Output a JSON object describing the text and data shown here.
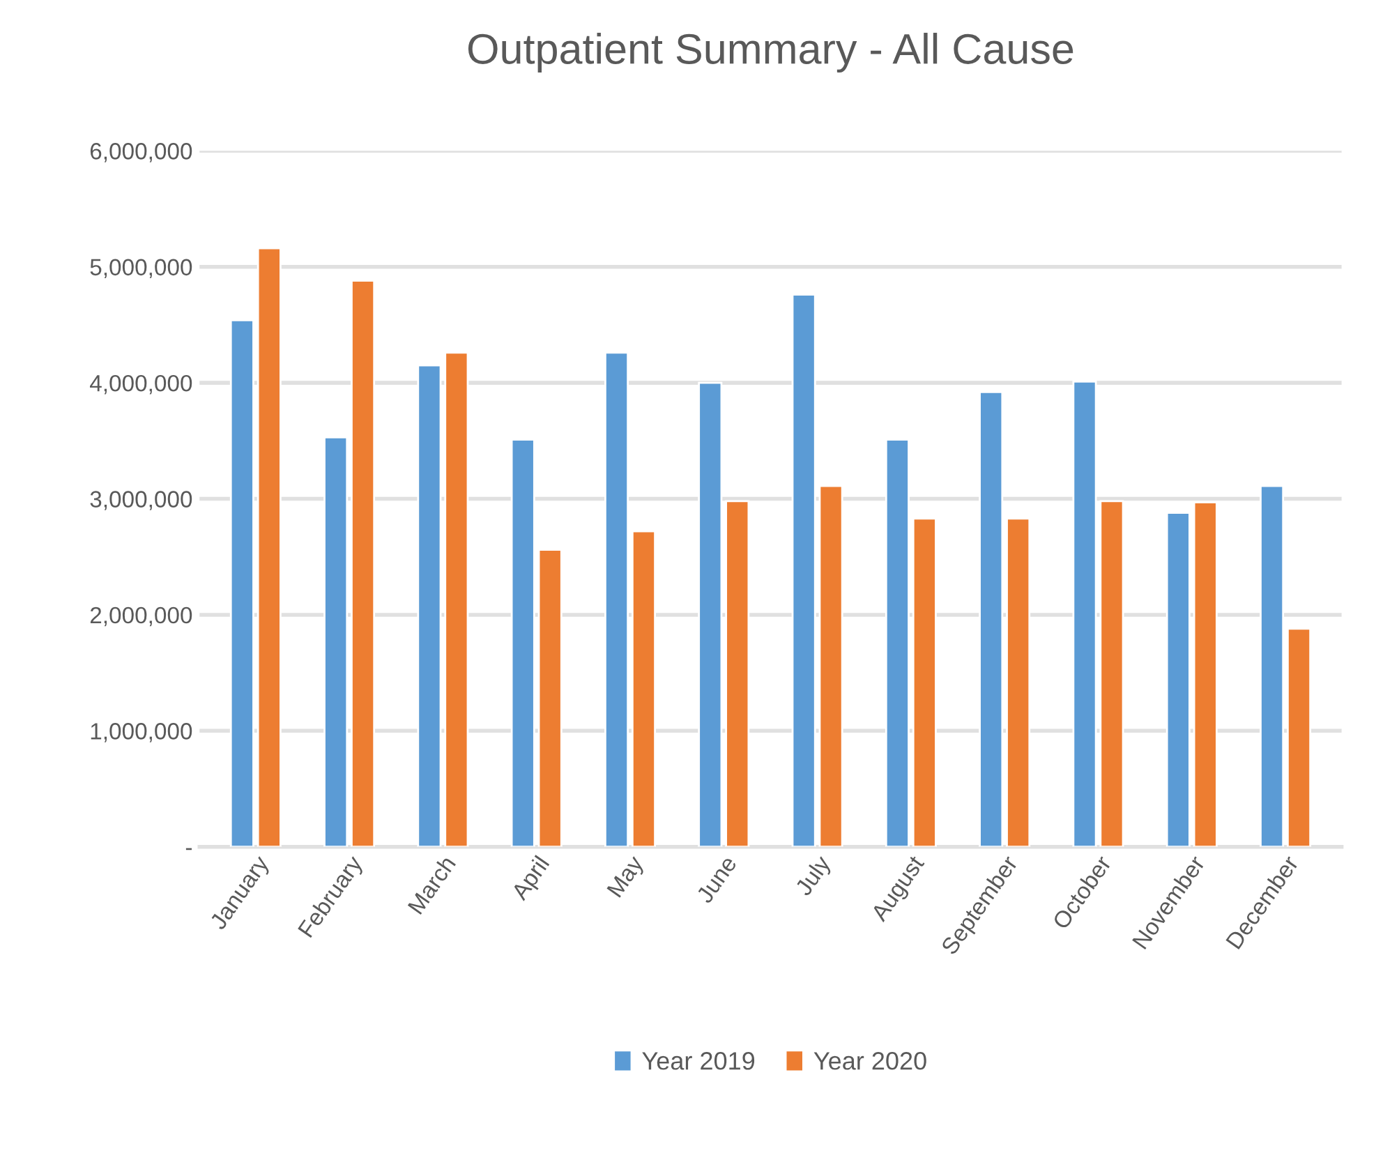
{
  "chart_data": {
    "type": "bar",
    "title": "Outpatient Summary - All Cause",
    "categories": [
      "January",
      "February",
      "March",
      "April",
      "May",
      "June",
      "July",
      "August",
      "September",
      "October",
      "November",
      "December"
    ],
    "series": [
      {
        "name": "Year 2019",
        "color": "#5b9bd5",
        "values": [
          4540000,
          3530000,
          4150000,
          3510000,
          4260000,
          4000000,
          4760000,
          3510000,
          3920000,
          4010000,
          2880000,
          3110000
        ]
      },
      {
        "name": "Year 2020",
        "color": "#ed7d31",
        "values": [
          5160000,
          4880000,
          4260000,
          2560000,
          2720000,
          2980000,
          3110000,
          2830000,
          2830000,
          2980000,
          2970000,
          1880000
        ]
      }
    ],
    "ylim": [
      0,
      6000000
    ],
    "yticks": [
      {
        "value": 0,
        "label": "-"
      },
      {
        "value": 1000000,
        "label": "1,000,000"
      },
      {
        "value": 2000000,
        "label": "2,000,000"
      },
      {
        "value": 3000000,
        "label": "3,000,000"
      },
      {
        "value": 4000000,
        "label": "4,000,000"
      },
      {
        "value": 5000000,
        "label": "5,000,000"
      },
      {
        "value": 6000000,
        "label": "6,000,000"
      }
    ],
    "grid": "y",
    "legend": "bottom"
  }
}
